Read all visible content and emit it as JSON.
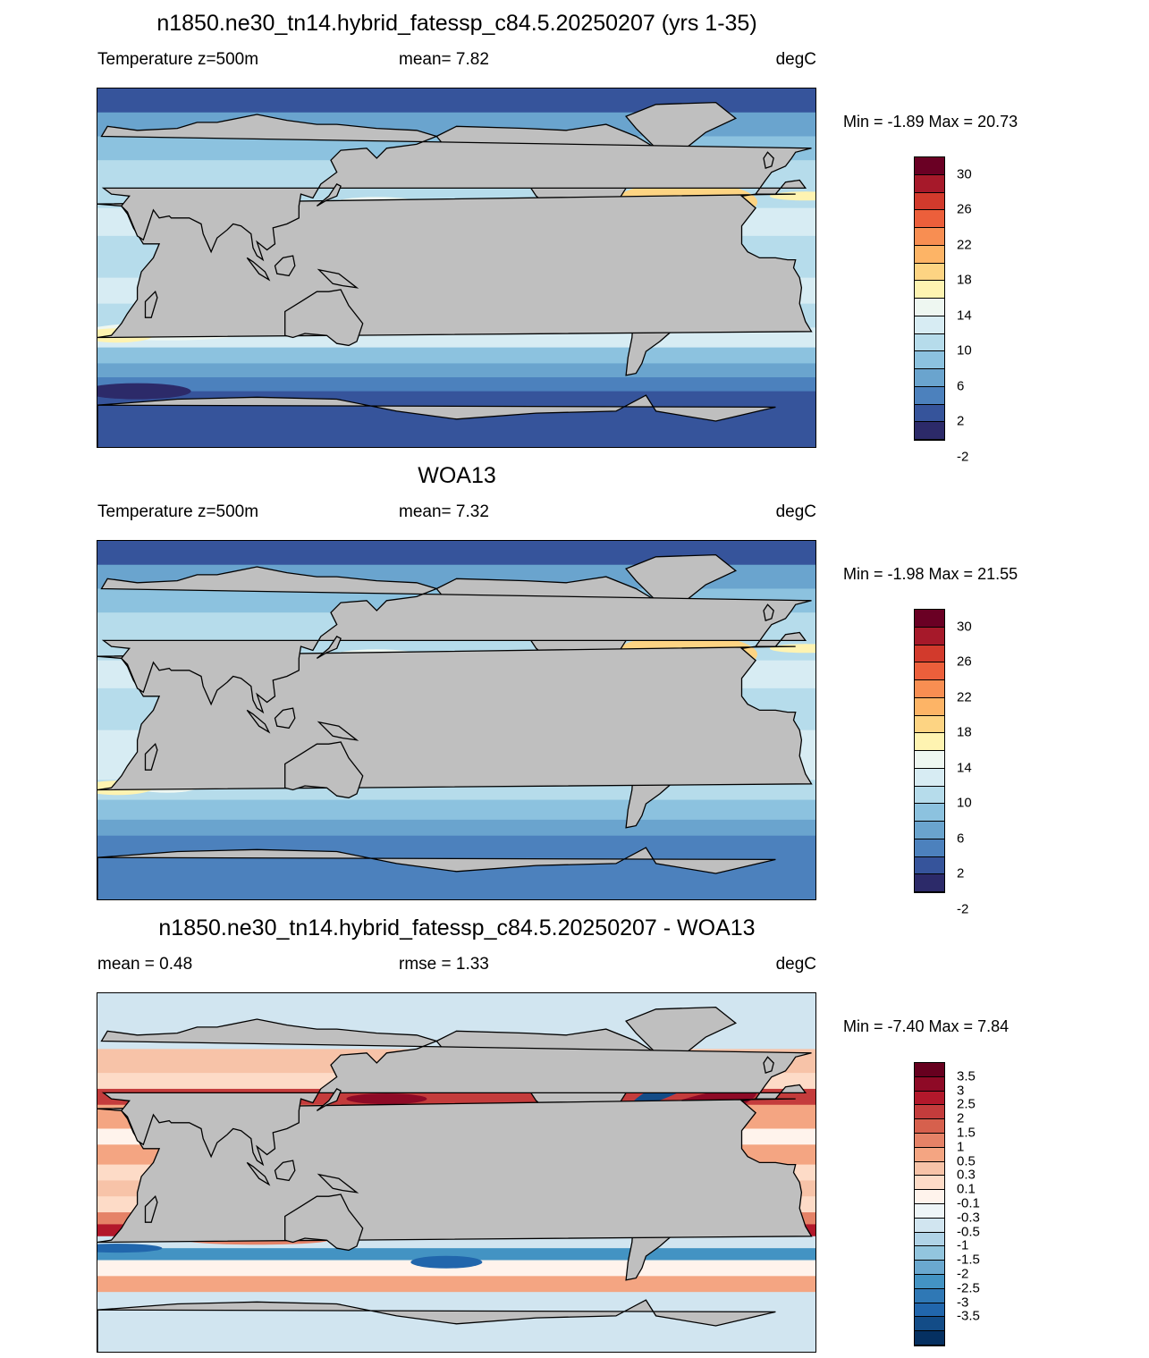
{
  "panels": [
    {
      "title": "n1850.ne30_tn14.hybrid_fatessp_c84.5.20250207 (yrs 1-35)",
      "left_label": "Temperature z=500m",
      "mid_label": "mean=   7.82",
      "units": "degC",
      "minmax": "Min =  -1.89 Max =  20.73",
      "colorbar": {
        "colors": [
          "#6a0024",
          "#a6192a",
          "#d23a2c",
          "#ec5f3b",
          "#f88e52",
          "#fdb466",
          "#fdd483",
          "#fef3b1",
          "#eef7f1",
          "#d7ecf3",
          "#b6dceb",
          "#8cc2df",
          "#6aa4ce",
          "#4c81bd",
          "#36549b",
          "#2c2a69"
        ],
        "labels": [
          "30",
          "26",
          "22",
          "18",
          "14",
          "10",
          "6",
          "2",
          "-2"
        ]
      },
      "kind": "model"
    },
    {
      "title": "WOA13",
      "left_label": "Temperature z=500m",
      "mid_label": "mean=   7.32",
      "units": "degC",
      "minmax": "Min =  -1.98 Max =  21.55",
      "colorbar": {
        "colors": [
          "#6a0024",
          "#a6192a",
          "#d23a2c",
          "#ec5f3b",
          "#f88e52",
          "#fdb466",
          "#fdd483",
          "#fef3b1",
          "#eef7f1",
          "#d7ecf3",
          "#b6dceb",
          "#8cc2df",
          "#6aa4ce",
          "#4c81bd",
          "#36549b",
          "#2c2a69"
        ],
        "labels": [
          "30",
          "26",
          "22",
          "18",
          "14",
          "10",
          "6",
          "2",
          "-2"
        ]
      },
      "kind": "obs"
    },
    {
      "title": "n1850.ne30_tn14.hybrid_fatessp_c84.5.20250207 - WOA13",
      "left_label": "mean =   0.48",
      "mid_label": "rmse =   1.33",
      "units": "degC",
      "minmax": "Min =  -7.40 Max =   7.84",
      "colorbar": {
        "colors": [
          "#67001f",
          "#8e0a26",
          "#b2182b",
          "#c43c3c",
          "#d6604d",
          "#e58267",
          "#f4a582",
          "#f7c3a8",
          "#fddbc7",
          "#fff3ec",
          "#eef5f8",
          "#d1e5f0",
          "#b0d3e7",
          "#92c5de",
          "#6aa8cf",
          "#4393c3",
          "#2f78b5",
          "#2166ac",
          "#134c87",
          "#053061"
        ],
        "labels": [
          "3.5",
          "3",
          "2.5",
          "2",
          "1.5",
          "1",
          "0.5",
          "0.3",
          "0.1",
          "-0.1",
          "-0.3",
          "-0.5",
          "-1",
          "-1.5",
          "-2",
          "-2.5",
          "-3",
          "-3.5"
        ]
      },
      "kind": "diff"
    }
  ],
  "chart_data": [
    {
      "type": "heatmap",
      "title": "n1850.ne30_tn14.hybrid_fatessp_c84.5.20250207 (yrs 1-35)",
      "variable": "Temperature z=500m",
      "units": "degC",
      "mean": 7.82,
      "min": -1.89,
      "max": 20.73,
      "colorbar_levels": [
        -2,
        0,
        2,
        4,
        6,
        8,
        10,
        12,
        14,
        16,
        18,
        20,
        22,
        24,
        26,
        28,
        30
      ]
    },
    {
      "type": "heatmap",
      "title": "WOA13",
      "variable": "Temperature z=500m",
      "units": "degC",
      "mean": 7.32,
      "min": -1.98,
      "max": 21.55,
      "colorbar_levels": [
        -2,
        0,
        2,
        4,
        6,
        8,
        10,
        12,
        14,
        16,
        18,
        20,
        22,
        24,
        26,
        28,
        30
      ]
    },
    {
      "type": "heatmap",
      "title": "n1850.ne30_tn14.hybrid_fatessp_c84.5.20250207 - WOA13",
      "units": "degC",
      "mean": 0.48,
      "rmse": 1.33,
      "min": -7.4,
      "max": 7.84,
      "colorbar_levels": [
        -3.5,
        -3,
        -2.5,
        -2,
        -1.5,
        -1,
        -0.5,
        -0.3,
        -0.1,
        0.1,
        0.3,
        0.5,
        1,
        1.5,
        2,
        2.5,
        3,
        3.5
      ]
    }
  ]
}
